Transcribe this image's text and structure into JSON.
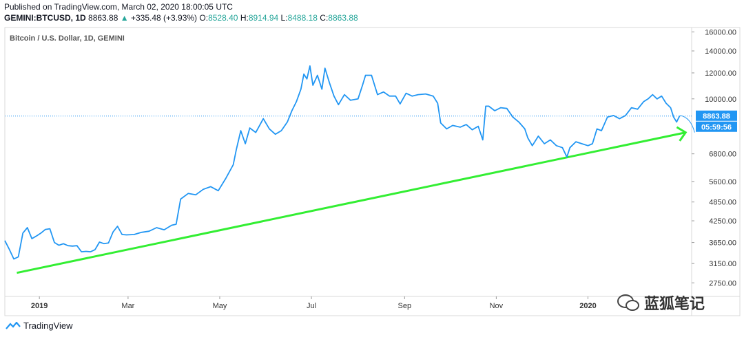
{
  "header": {
    "published": "Published on TradingView.com, March 02, 2020 18:00:05 UTC",
    "symbol_line": "GEMINI:BTCUSD, 1D",
    "last": "8863.88",
    "change": "+335.48 (+3.93%)",
    "o_label": "O:",
    "o": "8528.40",
    "h_label": "H:",
    "h": "8914.94",
    "l_label": "L:",
    "l": "8488.18",
    "c_label": "C:",
    "c": "8863.88"
  },
  "chart_title": "Bitcoin / U.S. Dollar, 1D, GEMINI",
  "brand": "TradingView",
  "watermark": "蓝狐笔记",
  "colors": {
    "line": "#2196f3",
    "trend": "#33ee33",
    "price_tag": "#2196f3",
    "bg": "#ffffff"
  },
  "chart_data": {
    "type": "line",
    "scale": "log",
    "title": "Bitcoin / U.S. Dollar, 1D, GEMINI",
    "ylim": [
      2500,
      16500
    ],
    "y_ticks": [
      16000,
      14000,
      12000,
      10000,
      6800,
      5600,
      4850,
      4250,
      3650,
      3150,
      2750
    ],
    "y_tick_labels": [
      "16000.00",
      "14000.00",
      "12000.00",
      "10000.00",
      "6800.00",
      "5600.00",
      "4850.00",
      "4250.00",
      "3650.00",
      "3150.00",
      "2750.00"
    ],
    "x_range": [
      "2018-12-09",
      "2020-03-10"
    ],
    "x_ticks": [
      {
        "date": "2019-01-01",
        "label": "2019",
        "bold": true
      },
      {
        "date": "2019-03-01",
        "label": "Mar",
        "bold": false
      },
      {
        "date": "2019-05-01",
        "label": "May",
        "bold": false
      },
      {
        "date": "2019-07-01",
        "label": "Jul",
        "bold": false
      },
      {
        "date": "2019-09-01",
        "label": "Sep",
        "bold": false
      },
      {
        "date": "2019-11-01",
        "label": "Nov",
        "bold": false
      },
      {
        "date": "2020-01-01",
        "label": "2020",
        "bold": true
      }
    ],
    "price_label": "8863.88",
    "countdown_label": "05:59:56",
    "price_line_value": 8863.88,
    "series": [
      {
        "x": [
          "2018-12-09",
          "2018-12-12",
          "2018-12-15",
          "2018-12-18",
          "2018-12-21",
          "2018-12-24",
          "2018-12-27",
          "2018-12-30",
          "2019-01-02",
          "2019-01-05",
          "2019-01-08",
          "2019-01-11",
          "2019-01-14",
          "2019-01-17",
          "2019-01-20",
          "2019-01-23",
          "2019-01-26",
          "2019-01-29",
          "2019-02-01",
          "2019-02-04",
          "2019-02-07",
          "2019-02-10",
          "2019-02-13",
          "2019-02-16",
          "2019-02-19",
          "2019-02-22",
          "2019-02-25",
          "2019-02-28",
          "2019-03-05",
          "2019-03-10",
          "2019-03-15",
          "2019-03-20",
          "2019-03-25",
          "2019-03-30",
          "2019-04-02",
          "2019-04-05",
          "2019-04-10",
          "2019-04-15",
          "2019-04-20",
          "2019-04-25",
          "2019-04-30",
          "2019-05-05",
          "2019-05-10",
          "2019-05-12",
          "2019-05-15",
          "2019-05-18",
          "2019-05-21",
          "2019-05-25",
          "2019-05-30",
          "2019-06-03",
          "2019-06-07",
          "2019-06-11",
          "2019-06-15",
          "2019-06-18",
          "2019-06-21",
          "2019-06-24",
          "2019-06-26",
          "2019-06-28",
          "2019-06-30",
          "2019-07-02",
          "2019-07-05",
          "2019-07-08",
          "2019-07-10",
          "2019-07-13",
          "2019-07-16",
          "2019-07-19",
          "2019-07-23",
          "2019-07-27",
          "2019-08-01",
          "2019-08-04",
          "2019-08-06",
          "2019-08-10",
          "2019-08-14",
          "2019-08-18",
          "2019-08-22",
          "2019-08-26",
          "2019-08-29",
          "2019-09-02",
          "2019-09-06",
          "2019-09-10",
          "2019-09-15",
          "2019-09-20",
          "2019-09-23",
          "2019-09-25",
          "2019-09-29",
          "2019-10-03",
          "2019-10-08",
          "2019-10-12",
          "2019-10-16",
          "2019-10-20",
          "2019-10-23",
          "2019-10-25",
          "2019-10-27",
          "2019-10-31",
          "2019-11-04",
          "2019-11-08",
          "2019-11-12",
          "2019-11-16",
          "2019-11-20",
          "2019-11-22",
          "2019-11-25",
          "2019-11-29",
          "2019-12-03",
          "2019-12-07",
          "2019-12-11",
          "2019-12-15",
          "2019-12-18",
          "2019-12-20",
          "2019-12-24",
          "2019-12-28",
          "2020-01-01",
          "2020-01-04",
          "2020-01-07",
          "2020-01-10",
          "2020-01-14",
          "2020-01-18",
          "2020-01-22",
          "2020-01-26",
          "2020-01-30",
          "2020-02-03",
          "2020-02-07",
          "2020-02-10",
          "2020-02-13",
          "2020-02-16",
          "2020-02-19",
          "2020-02-22",
          "2020-02-25",
          "2020-02-27",
          "2020-02-29",
          "2020-03-02"
        ],
        "values": [
          3700,
          3480,
          3250,
          3300,
          3900,
          4050,
          3750,
          3820,
          3900,
          4000,
          4020,
          3650,
          3580,
          3620,
          3570,
          3560,
          3570,
          3420,
          3430,
          3420,
          3470,
          3660,
          3620,
          3640,
          3930,
          4090,
          3860,
          3850,
          3860,
          3920,
          3950,
          4050,
          3990,
          4120,
          4150,
          4950,
          5150,
          5100,
          5300,
          5400,
          5250,
          5720,
          6300,
          7000,
          8000,
          7300,
          8150,
          7900,
          8700,
          8100,
          7800,
          8000,
          8500,
          9200,
          9800,
          10700,
          11900,
          11500,
          12600,
          11000,
          11800,
          10700,
          12400,
          11200,
          10200,
          9600,
          10300,
          9900,
          10000,
          11000,
          11800,
          11800,
          10300,
          10500,
          10200,
          10200,
          9650,
          10400,
          10200,
          10300,
          10350,
          10200,
          9700,
          8450,
          8100,
          8300,
          8200,
          8350,
          8050,
          8250,
          7500,
          9500,
          9500,
          9200,
          9400,
          9350,
          8800,
          8500,
          8100,
          7600,
          7200,
          7700,
          7300,
          7500,
          7200,
          7100,
          6650,
          7100,
          7400,
          7300,
          7200,
          7300,
          8100,
          8000,
          8800,
          8900,
          8700,
          8900,
          9400,
          9300,
          9800,
          10000,
          10300,
          10000,
          10200,
          9700,
          9400,
          8800,
          8500,
          8863.88
        ]
      }
    ],
    "trendline": {
      "from": {
        "date": "2018-12-17",
        "value": 2950
      },
      "to": {
        "date": "2020-03-06",
        "value": 7900
      },
      "label": ""
    },
    "arrow_curve": {
      "from": {
        "date": "2020-03-02",
        "value": 8900
      },
      "to": {
        "date": "2020-03-12",
        "value": 7900
      }
    }
  }
}
